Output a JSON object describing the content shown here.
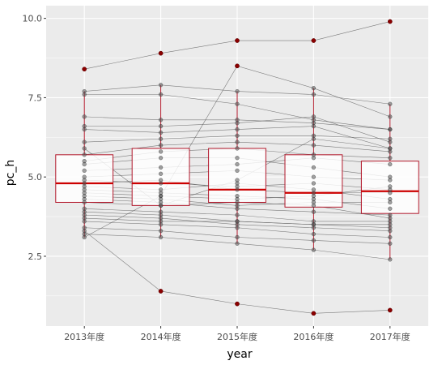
{
  "chart_data": {
    "type": "boxplot-with-points",
    "xlabel": "year",
    "ylabel": "pc_h",
    "categories": [
      "2013年度",
      "2014年度",
      "2015年度",
      "2016年度",
      "2017年度"
    ],
    "ylim": [
      0.3,
      10.4
    ],
    "yticks": [
      2.5,
      5.0,
      7.5,
      10.0
    ],
    "ytick_labels": [
      "2.5",
      "5.0",
      "7.5",
      "10.0"
    ],
    "grid": true,
    "colors": {
      "panel": "#ebebeb",
      "grid_major": "#ffffff",
      "box": "#b2182b",
      "median": "#cc0000",
      "outlier": "#8b0000",
      "line": "#555555",
      "point": "#555555"
    },
    "boxes": [
      {
        "q1": 4.2,
        "median": 4.8,
        "q3": 5.7,
        "lower": 3.1,
        "upper": 7.7
      },
      {
        "q1": 4.1,
        "median": 4.8,
        "q3": 5.9,
        "lower": 3.1,
        "upper": 7.9
      },
      {
        "q1": 4.2,
        "median": 4.6,
        "q3": 5.9,
        "lower": 2.9,
        "upper": 7.7
      },
      {
        "q1": 4.05,
        "median": 4.5,
        "q3": 5.7,
        "lower": 2.7,
        "upper": 7.8
      },
      {
        "q1": 3.85,
        "median": 4.55,
        "q3": 5.5,
        "lower": 2.4,
        "upper": 7.3
      }
    ],
    "outliers": [
      {
        "x": "2013年度",
        "y": 8.4
      },
      {
        "x": "2014年度",
        "y": 8.9
      },
      {
        "x": "2014年度",
        "y": 1.4
      },
      {
        "x": "2015年度",
        "y": 9.3
      },
      {
        "x": "2015年度",
        "y": 8.5
      },
      {
        "x": "2015年度",
        "y": 1.0
      },
      {
        "x": "2016年度",
        "y": 9.3
      },
      {
        "x": "2016年度",
        "y": 0.7
      },
      {
        "x": "2017年度",
        "y": 9.9
      },
      {
        "x": "2017年度",
        "y": 0.8
      }
    ],
    "series": [
      {
        "values": [
          8.4,
          8.9,
          9.3,
          9.3,
          9.9
        ]
      },
      {
        "values": [
          7.7,
          7.9,
          7.7,
          7.6,
          7.3
        ]
      },
      {
        "values": [
          7.6,
          7.6,
          7.3,
          6.8,
          6.5
        ]
      },
      {
        "values": [
          6.9,
          6.8,
          6.8,
          6.7,
          6.5
        ]
      },
      {
        "values": [
          6.6,
          6.6,
          6.7,
          6.9,
          6.1
        ]
      },
      {
        "values": [
          6.5,
          6.4,
          6.5,
          6.6,
          5.9
        ]
      },
      {
        "values": [
          6.1,
          6.2,
          6.3,
          6.3,
          6.2
        ]
      },
      {
        "values": [
          5.7,
          6.0,
          6.1,
          6.0,
          5.8
        ]
      },
      {
        "values": [
          5.5,
          5.8,
          5.9,
          5.7,
          5.6
        ]
      },
      {
        "values": [
          5.4,
          5.6,
          5.6,
          5.3,
          5.0
        ]
      },
      {
        "values": [
          5.2,
          5.3,
          5.4,
          5.6,
          5.4
        ]
      },
      {
        "values": [
          5.0,
          5.1,
          5.2,
          5.0,
          4.9
        ]
      },
      {
        "values": [
          4.9,
          4.8,
          4.7,
          4.8,
          4.6
        ]
      },
      {
        "values": [
          4.8,
          4.9,
          4.6,
          4.5,
          4.5
        ]
      },
      {
        "values": [
          4.7,
          4.6,
          4.8,
          4.6,
          4.3
        ]
      },
      {
        "values": [
          4.6,
          4.5,
          4.4,
          4.3,
          4.0
        ]
      },
      {
        "values": [
          4.5,
          4.4,
          4.3,
          4.4,
          4.7
        ]
      },
      {
        "values": [
          4.4,
          4.3,
          4.1,
          4.2,
          4.2
        ]
      },
      {
        "values": [
          4.3,
          4.2,
          4.0,
          3.9,
          3.8
        ]
      },
      {
        "values": [
          4.2,
          4.1,
          4.2,
          4.1,
          3.7
        ]
      },
      {
        "values": [
          4.0,
          3.9,
          3.8,
          3.6,
          3.6
        ]
      },
      {
        "values": [
          3.9,
          3.8,
          3.6,
          3.5,
          3.4
        ]
      },
      {
        "values": [
          3.8,
          3.7,
          3.5,
          3.4,
          3.3
        ]
      },
      {
        "values": [
          3.7,
          3.6,
          3.6,
          3.5,
          3.5
        ]
      },
      {
        "values": [
          3.6,
          3.5,
          3.4,
          3.2,
          3.1
        ]
      },
      {
        "values": [
          3.4,
          3.3,
          3.1,
          3.0,
          2.9
        ]
      },
      {
        "values": [
          3.2,
          3.1,
          2.9,
          2.7,
          2.4
        ]
      },
      {
        "values": [
          3.1,
          4.4,
          8.5,
          7.8,
          6.9
        ]
      },
      {
        "values": [
          5.9,
          4.1,
          4.9,
          6.2,
          5.9
        ]
      },
      {
        "values": [
          3.3,
          1.4,
          1.0,
          0.7,
          0.8
        ]
      }
    ]
  }
}
